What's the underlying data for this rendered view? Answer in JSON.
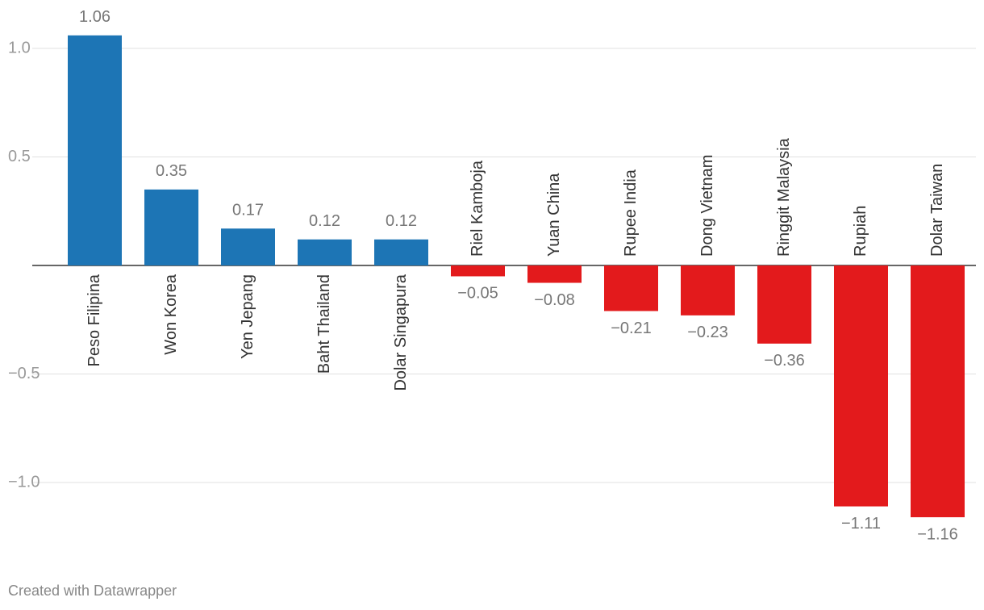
{
  "chart_data": {
    "type": "bar",
    "categories": [
      "Peso Filipina",
      "Won Korea",
      "Yen Jepang",
      "Baht Thailand",
      "Dolar Singapura",
      "Riel Kamboja",
      "Yuan China",
      "Rupee India",
      "Dong Vietnam",
      "Ringgit Malaysia",
      "Rupiah",
      "Dolar Taiwan"
    ],
    "values": [
      1.06,
      0.35,
      0.17,
      0.12,
      0.12,
      -0.05,
      -0.08,
      -0.21,
      -0.23,
      -0.36,
      -1.11,
      -1.16
    ],
    "value_labels": [
      "1.06",
      "0.35",
      "0.17",
      "0.12",
      "0.12",
      "−0.05",
      "−0.08",
      "−0.21",
      "−0.23",
      "−0.36",
      "−1.11",
      "−1.16"
    ],
    "colors": [
      "#1d75b5",
      "#1d75b5",
      "#1d75b5",
      "#1d75b5",
      "#1d75b5",
      "#e31a1c",
      "#e31a1c",
      "#e31a1c",
      "#e31a1c",
      "#e31a1c",
      "#e31a1c",
      "#e31a1c"
    ],
    "ylim": [
      -1.3,
      1.2
    ],
    "yticks": [
      {
        "value": 1,
        "label": "1.0"
      },
      0.5,
      {
        "value": -0.5,
        "label": "−0.5"
      },
      {
        "value": -1,
        "label": "−1.0"
      }
    ],
    "grid": true,
    "footer": "Created with Datawrapper"
  }
}
